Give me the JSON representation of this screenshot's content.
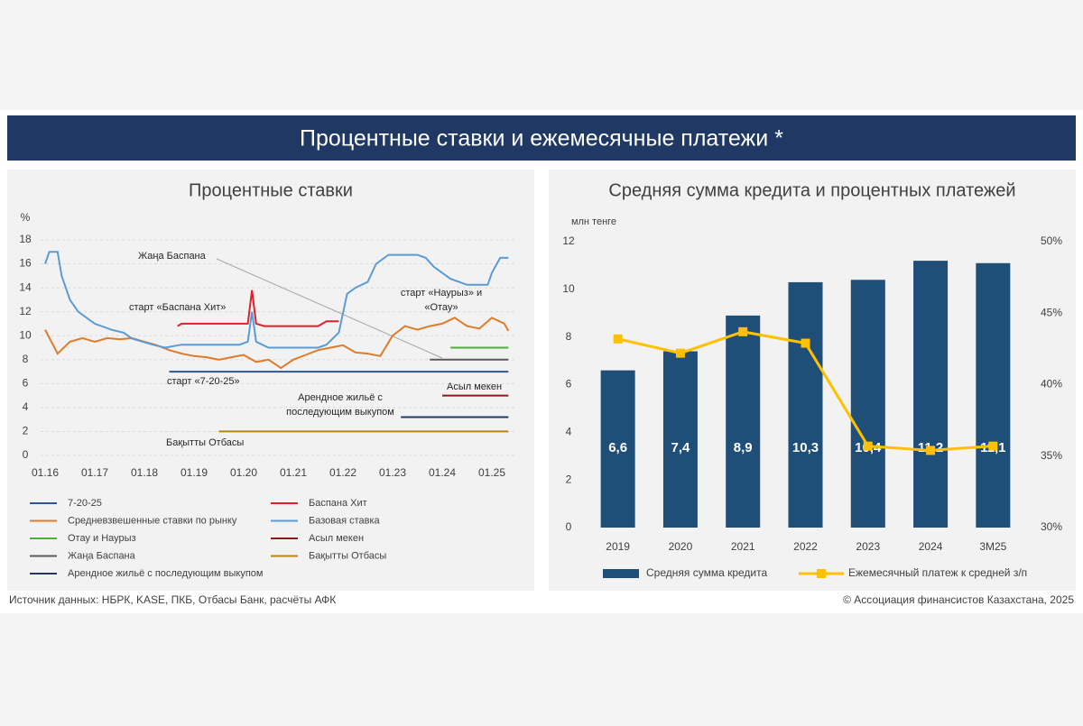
{
  "title": "Процентные ставки и ежемесячные платежи *",
  "source": "Источник данных: НБРК, KASE, ПКБ, Отбасы Банк, расчёты АФК",
  "copyright": "© Ассоциация финансистов Казахстана, 2025",
  "chart_data": [
    {
      "type": "line",
      "title": "Процентные ставки",
      "y_label": "%",
      "ylim": [
        0,
        18
      ],
      "yticks": [
        0,
        2,
        4,
        6,
        8,
        10,
        12,
        14,
        16,
        18
      ],
      "grid": true,
      "xticks": [
        "01.16",
        "01.17",
        "01.18",
        "01.19",
        "01.20",
        "01.21",
        "01.22",
        "01.23",
        "01.24",
        "01.25"
      ],
      "series": [
        {
          "name": "7-20-25",
          "color": "#2f5597",
          "x": [
            "07.18",
            "05.25"
          ],
          "values": [
            7,
            7
          ]
        },
        {
          "name": "Баспана Хит",
          "color": "#e0202a",
          "x": [
            "09.18",
            "10.18",
            "02.20",
            "03.20",
            "04.20",
            "06.20",
            "07.21",
            "09.21",
            "12.21"
          ],
          "values": [
            10.8,
            11.0,
            11.0,
            13.8,
            11.0,
            10.8,
            10.8,
            11.2,
            11.2
          ]
        },
        {
          "name": "Средневзвешенные ставки по рынку",
          "color": "#e07b2a",
          "x": [
            "01.16",
            "04.16",
            "07.16",
            "10.16",
            "01.17",
            "04.17",
            "07.17",
            "10.17",
            "01.18",
            "04.18",
            "07.18",
            "10.18",
            "01.19",
            "04.19",
            "07.19",
            "10.19",
            "01.20",
            "04.20",
            "07.20",
            "10.20",
            "01.21",
            "04.21",
            "07.21",
            "10.21",
            "01.22",
            "04.22",
            "07.22",
            "10.22",
            "01.23",
            "04.23",
            "07.23",
            "10.23",
            "01.24",
            "04.24",
            "07.24",
            "10.24",
            "01.25",
            "04.25",
            "05.25"
          ],
          "values": [
            10.5,
            8.5,
            9.5,
            9.8,
            9.5,
            9.8,
            9.7,
            9.8,
            9.5,
            9.2,
            8.8,
            8.5,
            8.3,
            8.2,
            8.0,
            8.2,
            8.4,
            7.8,
            8.0,
            7.3,
            8.0,
            8.4,
            8.8,
            9.0,
            9.2,
            8.6,
            8.5,
            8.3,
            10.0,
            10.8,
            10.5,
            10.8,
            11.0,
            11.5,
            10.8,
            10.6,
            11.5,
            11.0,
            10.4
          ]
        },
        {
          "name": "Базовая ставка",
          "color": "#5b9bd5",
          "x": [
            "01.16",
            "02.16",
            "04.16",
            "05.16",
            "07.16",
            "09.16",
            "01.17",
            "05.17",
            "08.17",
            "10.17",
            "03.18",
            "06.18",
            "10.18",
            "12.19",
            "02.20",
            "03.20",
            "04.20",
            "07.20",
            "07.21",
            "09.21",
            "12.21",
            "02.22",
            "04.22",
            "07.22",
            "09.22",
            "12.22",
            "07.23",
            "09.23",
            "11.23",
            "03.24",
            "07.24",
            "12.24",
            "01.25",
            "03.25",
            "05.25"
          ],
          "values": [
            16,
            17,
            17,
            15,
            13,
            12,
            11,
            10.5,
            10.25,
            9.75,
            9.25,
            9.0,
            9.25,
            9.25,
            9.5,
            12,
            9.5,
            9.0,
            9.0,
            9.25,
            10.25,
            13.5,
            14,
            14.5,
            16,
            16.75,
            16.75,
            16.5,
            15.75,
            14.75,
            14.25,
            14.25,
            15.25,
            16.5,
            16.5
          ]
        },
        {
          "name": "Отау и Наурыз",
          "color": "#4caf3a",
          "x": [
            "03.24",
            "05.25"
          ],
          "values": [
            9,
            9
          ]
        },
        {
          "name": "Асыл мекен",
          "color": "#8b1a1a",
          "x": [
            "01.24",
            "05.25"
          ],
          "values": [
            5,
            5
          ]
        },
        {
          "name": "Жаңа Баспана",
          "color": "#595959",
          "x": [
            "10.23",
            "05.25"
          ],
          "values": [
            8,
            8
          ]
        },
        {
          "name": "Бақытты Отбасы",
          "color": "#b8860b",
          "x": [
            "07.19",
            "05.25"
          ],
          "values": [
            2,
            2
          ]
        },
        {
          "name": "Арендное жильё с последующим выкупом",
          "color": "#1f3864",
          "x": [
            "03.23",
            "05.25"
          ],
          "values": [
            3.2,
            3.2
          ]
        }
      ],
      "annotations": [
        {
          "lines": [
            "Жаңа Баспана"
          ]
        },
        {
          "lines": [
            "старт «Баспана Хит»"
          ]
        },
        {
          "lines": [
            "старт «Наурыз» и",
            "«Отау»"
          ]
        },
        {
          "lines": [
            "старт «7-20-25»"
          ]
        },
        {
          "lines": [
            "Асыл мекен"
          ]
        },
        {
          "lines": [
            "Арендное жильё с",
            "последующим выкупом"
          ]
        },
        {
          "lines": [
            "Бақытты Отбасы"
          ]
        }
      ]
    },
    {
      "type": "bar_line",
      "title": "Средняя сумма кредита и процентных платежей",
      "y_label": "млн тенге",
      "ylim": [
        0,
        12
      ],
      "yticks": [
        0,
        2,
        4,
        6,
        8,
        10,
        12
      ],
      "y2lim": [
        30,
        50
      ],
      "y2ticks": [
        {
          "value": 30,
          "label": "30%"
        },
        {
          "value": 35,
          "label": "35%"
        },
        {
          "value": 40,
          "label": "40%"
        },
        {
          "value": 45,
          "label": "45%"
        },
        {
          "value": 50,
          "label": "50%"
        }
      ],
      "categories": [
        "2019",
        "2020",
        "2021",
        "2022",
        "2023",
        "2024",
        "3М25"
      ],
      "series": [
        {
          "name": "Средняя сумма кредита",
          "color": "#1f4e79",
          "values": [
            6.6,
            7.4,
            8.9,
            10.3,
            10.4,
            11.2,
            11.1
          ],
          "value_labels": [
            "6,6",
            "7,4",
            "8,9",
            "10,3",
            "10,4",
            "11,2",
            "11,1"
          ]
        },
        {
          "name": "Ежемесячный платеж к средней з/п",
          "color": "#ffc000",
          "axis": "y2",
          "values": [
            43.2,
            42.2,
            43.7,
            42.9,
            35.7,
            35.4,
            35.7
          ]
        }
      ]
    }
  ]
}
